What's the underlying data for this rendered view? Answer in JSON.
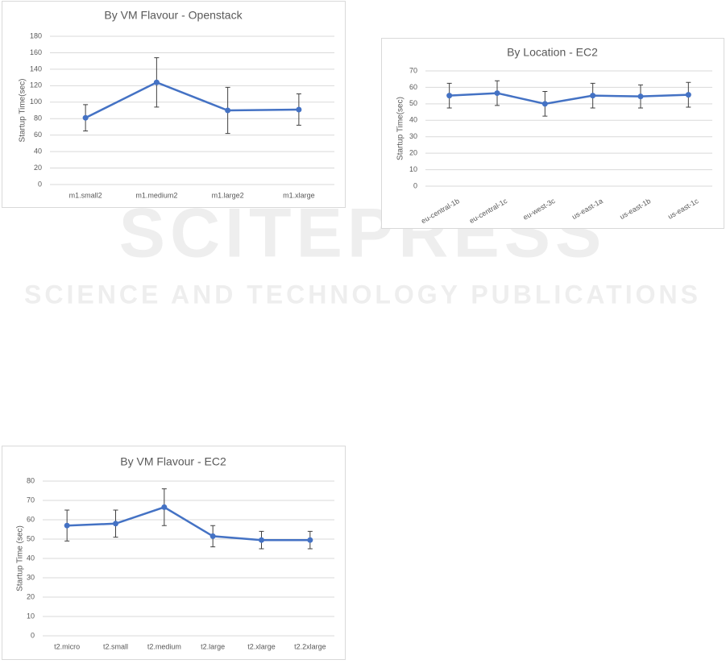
{
  "watermark": {
    "title": "SCITEPRESS",
    "subtitle": "SCIENCE AND TECHNOLOGY PUBLICATIONS"
  },
  "chart_data": [
    {
      "type": "line",
      "title": "By VM Flavour - Openstack",
      "y_label": "Startup Time(sec)",
      "categories": [
        "m1.small2",
        "m1.medium2",
        "m1.large2",
        "m1.xlarge"
      ],
      "series": [
        {
          "color": "#4472c4",
          "values": [
            81,
            124,
            90,
            91
          ],
          "errors": [
            16,
            30,
            28,
            19
          ]
        }
      ],
      "ylim": [
        0,
        180
      ],
      "yticks": [
        0,
        20,
        40,
        60,
        80,
        100,
        120,
        140,
        160,
        180
      ],
      "grid": true
    },
    {
      "type": "line",
      "title": "By Location - EC2",
      "y_label": "Startup Time(sec)",
      "categories": [
        "eu-central-1b",
        "eu-central-1c",
        "eu-west-3c",
        "us-east-1a",
        "us-east-1b",
        "us-east-1c"
      ],
      "series": [
        {
          "color": "#4472c4",
          "values": [
            55,
            56.5,
            50,
            55,
            54.5,
            55.5
          ],
          "errors": [
            7.5,
            7.5,
            7.5,
            7.5,
            7,
            7.5
          ]
        }
      ],
      "ylim": [
        0,
        70
      ],
      "yticks": [
        0,
        10,
        20,
        30,
        40,
        50,
        60,
        70
      ],
      "grid": true,
      "rotate_labels": true
    },
    {
      "type": "line",
      "title": "By VM Flavour - EC2",
      "y_label": "Startup Time (sec)",
      "categories": [
        "t2.micro",
        "t2.small",
        "t2.medium",
        "t2.large",
        "t2.xlarge",
        "t2.2xlarge"
      ],
      "series": [
        {
          "color": "#4472c4",
          "values": [
            57,
            58,
            66.5,
            51.5,
            49.5,
            49.5
          ],
          "errors": [
            8,
            7,
            9.5,
            5.5,
            4.5,
            4.5
          ]
        }
      ],
      "ylim": [
        0,
        80
      ],
      "yticks": [
        0,
        10,
        20,
        30,
        40,
        50,
        60,
        70,
        80
      ],
      "grid": true
    }
  ]
}
